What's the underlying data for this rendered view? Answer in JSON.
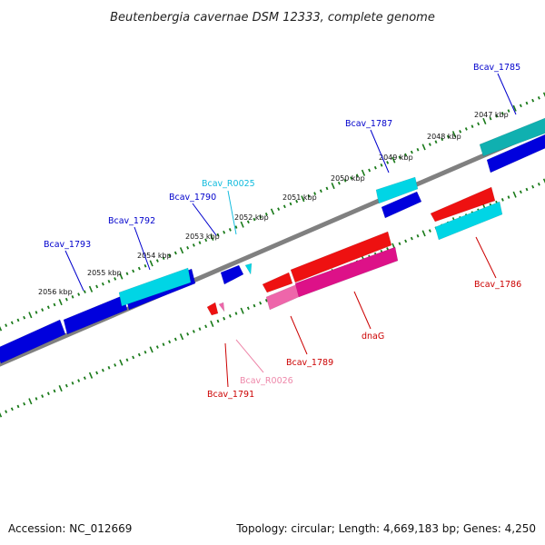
{
  "title": "Beutenbergia cavernae DSM 12333, complete genome",
  "footer": {
    "accession": "Accession: NC_012669",
    "summary": "Topology: circular; Length: 4,669,183 bp; Genes: 4,250"
  },
  "colors": {
    "backbone": "#808080",
    "tick": "#1a7a1a",
    "cds_forward": "#0000dd",
    "cds_reverse": "#ee1111",
    "rna_forward": "#00d5e5",
    "rna_reverse": "#ee66aa",
    "other_forward": "#10b0b0",
    "other_reverse": "#dd1188",
    "label_blue": "#0000cc",
    "label_red": "#cc0000",
    "label_cyan": "#11bbdd",
    "label_pink": "#ee88aa"
  },
  "kbp_ticks": [
    {
      "label": "2056 kbp"
    },
    {
      "label": "2055 kbp"
    },
    {
      "label": "2054 kbp"
    },
    {
      "label": "2053 kbp"
    },
    {
      "label": "2052 kbp"
    },
    {
      "label": "2051 kbp"
    },
    {
      "label": "2050 kbp"
    },
    {
      "label": "2049 kbp"
    },
    {
      "label": "2048 kbp"
    },
    {
      "label": "2047 kbp"
    }
  ],
  "genes": [
    {
      "name": "Bcav_1793",
      "strand": "forward",
      "color_key": "label_blue"
    },
    {
      "name": "Bcav_1792",
      "strand": "forward",
      "color_key": "label_blue"
    },
    {
      "name": "Bcav_1790",
      "strand": "forward",
      "color_key": "label_blue"
    },
    {
      "name": "Bcav_R0025",
      "strand": "forward",
      "color_key": "label_cyan"
    },
    {
      "name": "Bcav_1787",
      "strand": "forward",
      "color_key": "label_blue"
    },
    {
      "name": "Bcav_1785",
      "strand": "forward",
      "color_key": "label_blue"
    },
    {
      "name": "Bcav_1786",
      "strand": "reverse",
      "color_key": "label_red"
    },
    {
      "name": "dnaG",
      "strand": "reverse",
      "color_key": "label_red"
    },
    {
      "name": "Bcav_1789",
      "strand": "reverse",
      "color_key": "label_red"
    },
    {
      "name": "Bcav_R0026",
      "strand": "reverse",
      "color_key": "label_pink"
    },
    {
      "name": "Bcav_1791",
      "strand": "reverse",
      "color_key": "label_red"
    }
  ]
}
